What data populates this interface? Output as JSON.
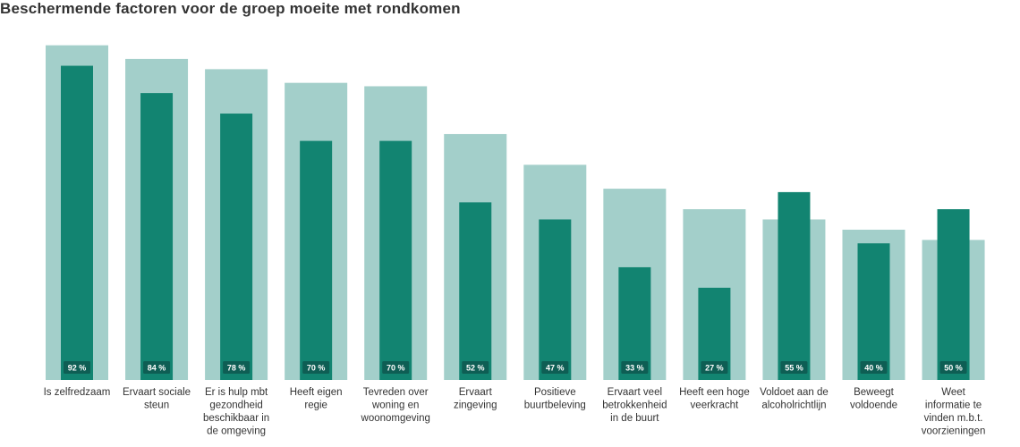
{
  "colors": {
    "bg_bar": "#a3cfca",
    "fg_bar": "#128471",
    "label_box": "#0e5e54"
  },
  "chart_data": {
    "type": "bar",
    "title": "Beschermende factoren voor de groep moeite met rondkomen",
    "xlabel": "",
    "ylabel": "",
    "ylim": [
      0,
      100
    ],
    "categories": [
      [
        "Is zelfredzaam"
      ],
      [
        "Ervaart sociale",
        "steun"
      ],
      [
        "Er is hulp mbt",
        "gezondheid",
        "beschikbaar in",
        "de omgeving"
      ],
      [
        "Heeft eigen",
        "regie"
      ],
      [
        "Tevreden over",
        "woning en",
        "woonomgeving"
      ],
      [
        "Ervaart",
        "zingeving"
      ],
      [
        "Positieve",
        "buurtbeleving"
      ],
      [
        "Ervaart veel",
        "betrokkenheid",
        "in de buurt"
      ],
      [
        "Heeft een hoge",
        "veerkracht"
      ],
      [
        "Voldoet aan de",
        "alcoholrichtlijn"
      ],
      [
        "Beweegt",
        "voldoende"
      ],
      [
        "Weet",
        "informatie te",
        "vinden m.b.t.",
        "voorzieningen"
      ]
    ],
    "series": [
      {
        "values": [
          98,
          94,
          91,
          87,
          86,
          72,
          63,
          56,
          50,
          47,
          44,
          41
        ]
      },
      {
        "values": [
          92,
          84,
          78,
          70,
          70,
          52,
          47,
          33,
          27,
          55,
          40,
          50
        ]
      }
    ],
    "value_labels": [
      "92 %",
      "84 %",
      "78 %",
      "70 %",
      "70 %",
      "52 %",
      "47 %",
      "33 %",
      "27 %",
      "55 %",
      "40 %",
      "50 %"
    ],
    "grid": false
  }
}
